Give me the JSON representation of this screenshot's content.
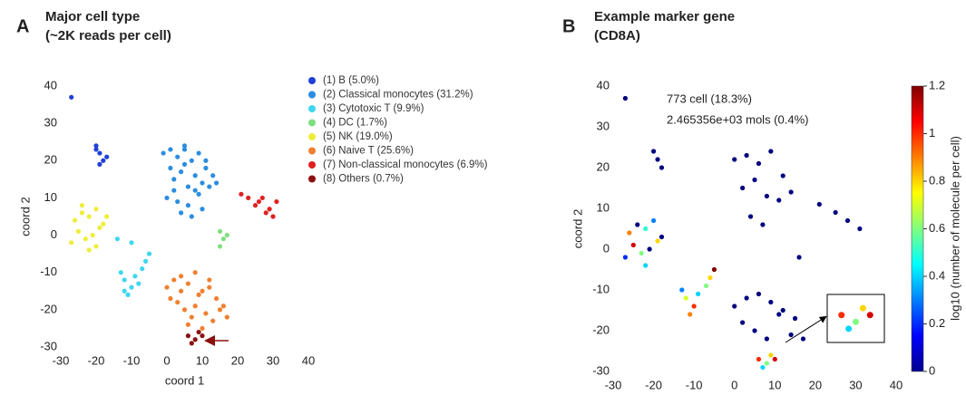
{
  "chart_data": [
    {
      "type": "scatter",
      "label": "A",
      "title": "Major cell type",
      "subtitle": "(~2K reads per cell)",
      "xlabel": "coord 1",
      "ylabel": "coord 2",
      "xlim": [
        -30,
        40
      ],
      "ylim": [
        -30,
        40
      ],
      "xticks": [
        -30,
        -20,
        -10,
        0,
        10,
        20,
        30,
        40
      ],
      "yticks": [
        -30,
        -20,
        -10,
        0,
        10,
        20,
        30,
        40
      ],
      "series": [
        {
          "name": "(1) B (5.0%)",
          "color": "#1f3fd6",
          "x": [
            -27,
            -20,
            -19,
            -18,
            -19,
            -17,
            -20
          ],
          "y": [
            37,
            24,
            22,
            20,
            19,
            21,
            23
          ]
        },
        {
          "name": "(2) Classical monocytes (31.2%)",
          "color": "#2b8de0",
          "x": [
            -1,
            1,
            3,
            5,
            7,
            9,
            11,
            13,
            2,
            4,
            6,
            8,
            10,
            0,
            3,
            6,
            9,
            12,
            1,
            5,
            8,
            4,
            7,
            2,
            10,
            14,
            5,
            11
          ],
          "y": [
            22,
            23,
            21,
            24,
            20,
            22,
            18,
            16,
            15,
            17,
            13,
            12,
            14,
            10,
            9,
            8,
            11,
            13,
            18,
            19,
            16,
            6,
            5,
            12,
            7,
            14,
            23,
            20
          ]
        },
        {
          "name": "(3) Cytotoxic T (9.9%)",
          "color": "#3fd7ef",
          "x": [
            -12,
            -10,
            -9,
            -11,
            -13,
            -7,
            -6,
            -5,
            -14,
            -10,
            -8,
            -12
          ],
          "y": [
            -12,
            -14,
            -11,
            -16,
            -10,
            -9,
            -7,
            -5,
            -1,
            -2,
            -13,
            -15
          ]
        },
        {
          "name": "(4) DC (1.7%)",
          "color": "#7fe07f",
          "x": [
            15,
            16,
            15,
            17
          ],
          "y": [
            1,
            -1,
            -3,
            0
          ]
        },
        {
          "name": "(5) NK (19.0%)",
          "color": "#eeee3a",
          "x": [
            -26,
            -24,
            -22,
            -20,
            -18,
            -25,
            -23,
            -21,
            -19,
            -27,
            -22,
            -24,
            -20,
            -17
          ],
          "y": [
            4,
            6,
            5,
            7,
            3,
            1,
            -1,
            0,
            2,
            -2,
            -4,
            8,
            -3,
            5
          ]
        },
        {
          "name": "(6) Naive T (25.6%)",
          "color": "#f08030",
          "x": [
            0,
            2,
            4,
            6,
            8,
            10,
            12,
            14,
            16,
            3,
            5,
            7,
            9,
            11,
            13,
            15,
            1,
            6,
            10,
            17,
            4,
            8,
            12
          ],
          "y": [
            -14,
            -12,
            -11,
            -13,
            -10,
            -15,
            -12,
            -17,
            -19,
            -18,
            -20,
            -22,
            -16,
            -21,
            -23,
            -20,
            -17,
            -24,
            -25,
            -22,
            -15,
            -19,
            -14
          ]
        },
        {
          "name": "(7) Non-classical monocytes (6.9%)",
          "color": "#e02020",
          "x": [
            25,
            27,
            29,
            31,
            28,
            26,
            30,
            23,
            21
          ],
          "y": [
            8,
            10,
            7,
            9,
            6,
            9,
            5,
            10,
            11
          ]
        },
        {
          "name": "(8) Others (0.7%)",
          "color": "#8b1010",
          "x": [
            6,
            8,
            10,
            7,
            9
          ],
          "y": [
            -27,
            -28,
            -27,
            -29,
            -26
          ]
        }
      ]
    },
    {
      "type": "colorscatter",
      "label": "B",
      "title": "Example marker gene",
      "subtitle": "(CD8A)",
      "annotations": [
        "773 cell (18.3%)",
        "2.465356e+03 mols (0.4%)"
      ],
      "xlabel": "coord 1",
      "ylabel": "coord 2",
      "xlim": [
        -30,
        40
      ],
      "ylim": [
        -30,
        40
      ],
      "xticks": [
        -30,
        -20,
        -10,
        0,
        10,
        20,
        30,
        40
      ],
      "yticks": [
        -30,
        -20,
        -10,
        0,
        10,
        20,
        30,
        40
      ],
      "x": [
        -27,
        -20,
        -19,
        -18,
        0,
        3,
        6,
        9,
        12,
        2,
        5,
        8,
        11,
        14,
        4,
        7,
        21,
        25,
        28,
        31,
        16,
        -26,
        -24,
        -22,
        -20,
        -18,
        -25,
        -23,
        -21,
        -19,
        -27,
        -22,
        -12,
        -10,
        -9,
        -11,
        -13,
        -7,
        -6,
        -5,
        0,
        3,
        6,
        9,
        12,
        15,
        2,
        5,
        8,
        11,
        14,
        17,
        6,
        8,
        10,
        7,
        9
      ],
      "y": [
        37,
        24,
        22,
        20,
        22,
        23,
        21,
        24,
        18,
        15,
        17,
        13,
        12,
        14,
        8,
        6,
        11,
        9,
        7,
        5,
        -2,
        4,
        6,
        5,
        7,
        3,
        1,
        -1,
        0,
        2,
        -2,
        -4,
        -12,
        -14,
        -11,
        -16,
        -10,
        -9,
        -7,
        -5,
        -14,
        -12,
        -11,
        -13,
        -15,
        -17,
        -18,
        -20,
        -22,
        -16,
        -21,
        -22,
        -27,
        -28,
        -27,
        -29,
        -26
      ],
      "values": [
        0,
        0,
        0,
        0,
        0,
        0,
        0,
        0,
        0,
        0,
        0,
        0,
        0,
        0,
        0,
        0,
        0,
        0,
        0,
        0,
        0,
        0.9,
        0,
        0.5,
        0.3,
        0,
        1.1,
        0.6,
        0,
        0.8,
        0.2,
        0.4,
        0.7,
        1,
        0.4,
        0.9,
        0.3,
        0.6,
        0.8,
        1.2,
        0,
        0,
        0,
        0,
        0,
        0,
        0,
        0,
        0,
        0,
        0,
        0,
        1,
        0.6,
        1.1,
        0.4,
        0.8
      ],
      "colorbar": {
        "label": "log10 (number of molecule per cell)",
        "lim": [
          0,
          1.2
        ],
        "ticks": [
          0,
          0.2,
          0.4,
          0.6,
          0.8,
          1,
          1.2
        ]
      }
    }
  ]
}
